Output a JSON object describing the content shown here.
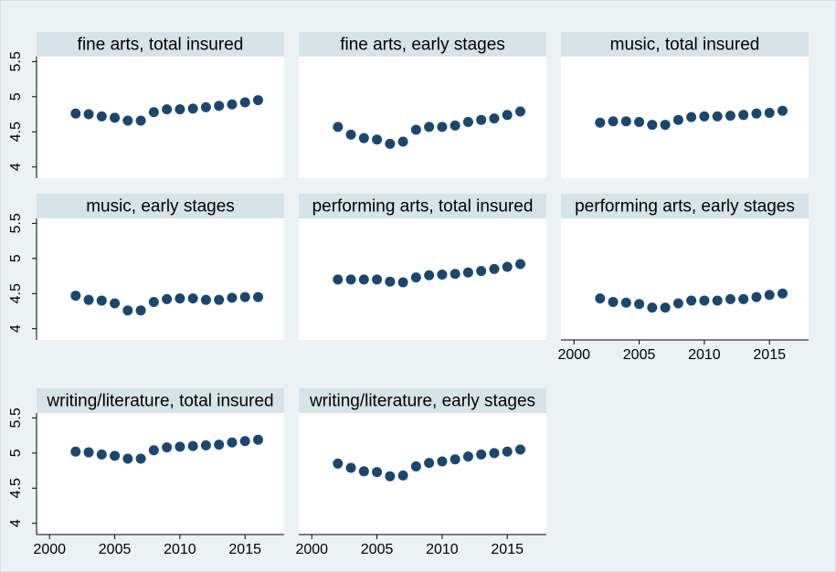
{
  "chart_data": [
    {
      "type": "scatter",
      "title": "fine arts, total insured",
      "color": "#1a476f",
      "x": [
        2002,
        2003,
        2004,
        2005,
        2006,
        2007,
        2008,
        2009,
        2010,
        2011,
        2012,
        2013,
        2014,
        2015,
        2016
      ],
      "values": [
        4.76,
        4.75,
        4.72,
        4.7,
        4.66,
        4.66,
        4.78,
        4.82,
        4.82,
        4.83,
        4.85,
        4.87,
        4.89,
        4.92,
        4.95
      ],
      "xlim": [
        1999,
        2018
      ],
      "ylim": [
        3.84,
        5.57
      ],
      "xticks": [
        2000,
        2005,
        2010,
        2015
      ],
      "yticks": [
        4,
        4.5,
        5,
        5.5
      ]
    },
    {
      "type": "scatter",
      "title": "fine arts, early stages",
      "color": "#1a476f",
      "x": [
        2002,
        2003,
        2004,
        2005,
        2006,
        2007,
        2008,
        2009,
        2010,
        2011,
        2012,
        2013,
        2014,
        2015,
        2016
      ],
      "values": [
        4.57,
        4.46,
        4.41,
        4.39,
        4.33,
        4.36,
        4.53,
        4.57,
        4.57,
        4.59,
        4.64,
        4.67,
        4.69,
        4.74,
        4.79
      ],
      "xlim": [
        1999,
        2018
      ],
      "ylim": [
        3.84,
        5.57
      ],
      "xticks": [
        2000,
        2005,
        2010,
        2015
      ],
      "yticks": [
        4,
        4.5,
        5,
        5.5
      ]
    },
    {
      "type": "scatter",
      "title": "music, total insured",
      "color": "#1a476f",
      "x": [
        2002,
        2003,
        2004,
        2005,
        2006,
        2007,
        2008,
        2009,
        2010,
        2011,
        2012,
        2013,
        2014,
        2015,
        2016
      ],
      "values": [
        4.63,
        4.65,
        4.65,
        4.64,
        4.6,
        4.6,
        4.67,
        4.71,
        4.72,
        4.72,
        4.73,
        4.74,
        4.76,
        4.77,
        4.8
      ],
      "xlim": [
        1999,
        2018
      ],
      "ylim": [
        3.84,
        5.57
      ],
      "xticks": [
        2000,
        2005,
        2010,
        2015
      ],
      "yticks": [
        4,
        4.5,
        5,
        5.5
      ]
    },
    {
      "type": "scatter",
      "title": "music, early stages",
      "color": "#1a476f",
      "x": [
        2002,
        2003,
        2004,
        2005,
        2006,
        2007,
        2008,
        2009,
        2010,
        2011,
        2012,
        2013,
        2014,
        2015,
        2016
      ],
      "values": [
        4.47,
        4.41,
        4.4,
        4.36,
        4.26,
        4.26,
        4.38,
        4.42,
        4.43,
        4.43,
        4.41,
        4.41,
        4.44,
        4.45,
        4.45
      ],
      "xlim": [
        1999,
        2018
      ],
      "ylim": [
        3.84,
        5.57
      ],
      "xticks": [
        2000,
        2005,
        2010,
        2015
      ],
      "yticks": [
        4,
        4.5,
        5,
        5.5
      ]
    },
    {
      "type": "scatter",
      "title": "performing arts, total insured",
      "color": "#1a476f",
      "x": [
        2002,
        2003,
        2004,
        2005,
        2006,
        2007,
        2008,
        2009,
        2010,
        2011,
        2012,
        2013,
        2014,
        2015,
        2016
      ],
      "values": [
        4.7,
        4.7,
        4.7,
        4.7,
        4.67,
        4.66,
        4.73,
        4.76,
        4.77,
        4.78,
        4.8,
        4.82,
        4.85,
        4.88,
        4.92
      ],
      "xlim": [
        1999,
        2018
      ],
      "ylim": [
        3.84,
        5.57
      ],
      "xticks": [
        2000,
        2005,
        2010,
        2015
      ],
      "yticks": [
        4,
        4.5,
        5,
        5.5
      ]
    },
    {
      "type": "scatter",
      "title": "performing arts, early stages",
      "color": "#1a476f",
      "x": [
        2002,
        2003,
        2004,
        2005,
        2006,
        2007,
        2008,
        2009,
        2010,
        2011,
        2012,
        2013,
        2014,
        2015,
        2016
      ],
      "values": [
        4.43,
        4.38,
        4.37,
        4.35,
        4.3,
        4.3,
        4.36,
        4.4,
        4.4,
        4.4,
        4.42,
        4.42,
        4.45,
        4.48,
        4.5
      ],
      "xlim": [
        1999,
        2018
      ],
      "ylim": [
        3.84,
        5.57
      ],
      "xticks": [
        2000,
        2005,
        2010,
        2015
      ],
      "yticks": [
        4,
        4.5,
        5,
        5.5
      ]
    },
    {
      "type": "scatter",
      "title": "writing/literature, total insured",
      "color": "#1a476f",
      "x": [
        2002,
        2003,
        2004,
        2005,
        2006,
        2007,
        2008,
        2009,
        2010,
        2011,
        2012,
        2013,
        2014,
        2015,
        2016
      ],
      "values": [
        5.02,
        5.01,
        4.98,
        4.96,
        4.92,
        4.92,
        5.04,
        5.08,
        5.09,
        5.1,
        5.11,
        5.12,
        5.15,
        5.17,
        5.19
      ],
      "xlim": [
        1999,
        2018
      ],
      "ylim": [
        3.84,
        5.57
      ],
      "xticks": [
        2000,
        2005,
        2010,
        2015
      ],
      "yticks": [
        4,
        4.5,
        5,
        5.5
      ]
    },
    {
      "type": "scatter",
      "title": "writing/literature, early stages",
      "color": "#1a476f",
      "x": [
        2002,
        2003,
        2004,
        2005,
        2006,
        2007,
        2008,
        2009,
        2010,
        2011,
        2012,
        2013,
        2014,
        2015,
        2016
      ],
      "values": [
        4.85,
        4.79,
        4.74,
        4.73,
        4.67,
        4.68,
        4.81,
        4.86,
        4.88,
        4.91,
        4.95,
        4.98,
        5.0,
        5.02,
        5.05
      ],
      "xlim": [
        1999,
        2018
      ],
      "ylim": [
        3.84,
        5.57
      ],
      "xticks": [
        2000,
        2005,
        2010,
        2015
      ],
      "yticks": [
        4,
        4.5,
        5,
        5.5
      ]
    }
  ]
}
